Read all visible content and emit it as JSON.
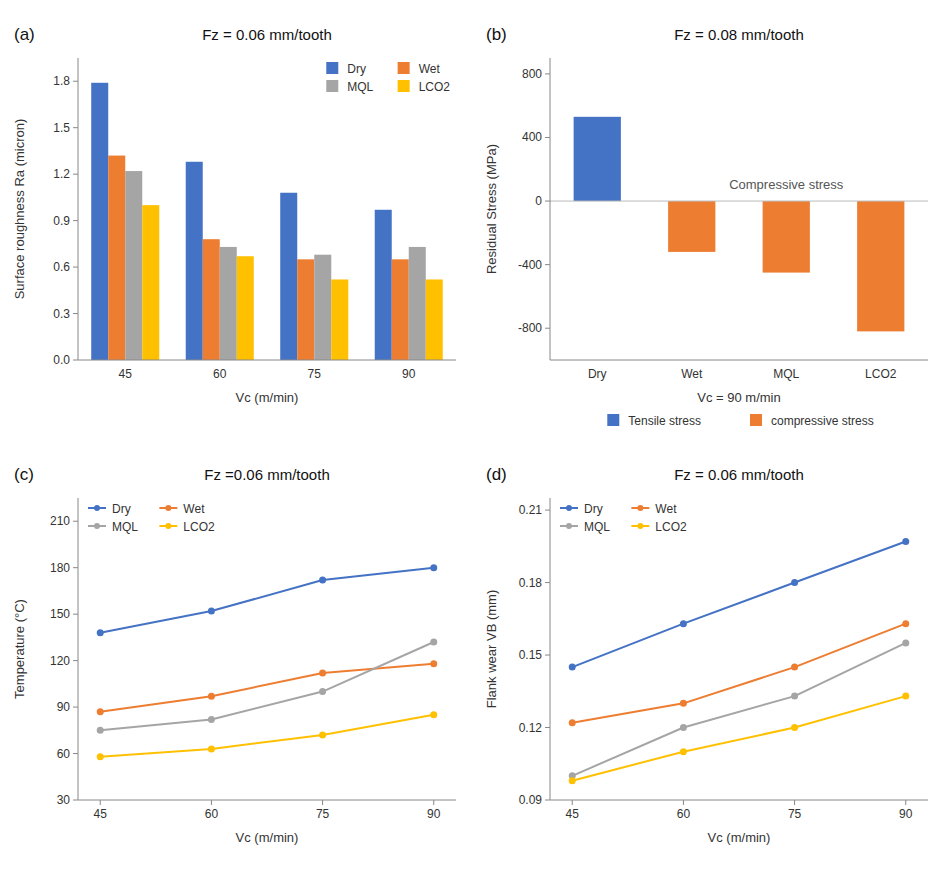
{
  "chart_data": [
    {
      "type": "bar",
      "panel_label": "(a)",
      "title": "Fz = 0.06 mm/tooth",
      "x_label": "Vc (m/min)",
      "y_label": "Surface roughness Ra (micron)",
      "categories": [
        45,
        60,
        75,
        90
      ],
      "series": [
        {
          "name": "Dry",
          "color": "#4472C4",
          "values": [
            1.79,
            1.28,
            1.08,
            0.97
          ]
        },
        {
          "name": "Wet",
          "color": "#ED7D31",
          "values": [
            1.32,
            0.78,
            0.65,
            0.65
          ]
        },
        {
          "name": "MQL",
          "color": "#A5A5A5",
          "values": [
            1.22,
            0.73,
            0.68,
            0.73
          ]
        },
        {
          "name": "LCO2",
          "color": "#FFC000",
          "values": [
            1.0,
            0.67,
            0.52,
            0.52
          ]
        }
      ],
      "ylim": [
        0,
        1.95
      ],
      "yticks": [
        {
          "value": 0,
          "label": "0.0"
        },
        0.3,
        0.6,
        0.9,
        1.2,
        1.5,
        1.8
      ],
      "grid": false,
      "legend": "upper right"
    },
    {
      "type": "bar",
      "panel_label": "(b)",
      "title": "Fz = 0.08 mm/tooth",
      "subtitle": "Vc = 90 m/min",
      "y_label": "Residual Stress (MPa)",
      "annotations": [
        "Compressive stress"
      ],
      "categories": [
        "Dry",
        "Wet",
        "MQL",
        "LCO2"
      ],
      "series": [
        {
          "name": "Tensile stress",
          "color": "#4472C4",
          "values": [
            530,
            null,
            null,
            null
          ]
        },
        {
          "name": "compressive stress",
          "color": "#ED7D31",
          "values": [
            null,
            -320,
            -450,
            -820
          ]
        }
      ],
      "stacked": true,
      "ylim": [
        -1000,
        900
      ],
      "yticks": [
        -800,
        -400,
        0,
        400,
        800
      ],
      "grid": false,
      "legend": "lower center"
    },
    {
      "type": "line",
      "panel_label": "(c)",
      "title": "Fz =0.06 mm/tooth",
      "x_label": "Vc (m/min)",
      "y_label": "Temperature (°C)",
      "x": [
        45,
        60,
        75,
        90
      ],
      "series": [
        {
          "name": "Dry",
          "color": "#4472C4",
          "values": [
            138,
            152,
            172,
            180
          ]
        },
        {
          "name": "Wet",
          "color": "#ED7D31",
          "values": [
            87,
            97,
            112,
            118
          ]
        },
        {
          "name": "MQL",
          "color": "#A5A5A5",
          "values": [
            75,
            82,
            100,
            132
          ]
        },
        {
          "name": "LCO2",
          "color": "#FFC000",
          "values": [
            58,
            63,
            72,
            85
          ]
        }
      ],
      "xlim": [
        42,
        93
      ],
      "xticks": [
        45,
        60,
        75,
        90
      ],
      "ylim": [
        30,
        225
      ],
      "yticks": [
        30,
        60,
        90,
        120,
        150,
        180,
        210
      ],
      "marker": "circle",
      "grid": false,
      "legend": "upper left"
    },
    {
      "type": "line",
      "panel_label": "(d)",
      "title": "Fz = 0.06 mm/tooth",
      "x_label": "Vc (m/min)",
      "y_label": "Flank wear VB (mm)",
      "x": [
        45,
        60,
        75,
        90
      ],
      "series": [
        {
          "name": "Dry",
          "color": "#4472C4",
          "values": [
            0.145,
            0.163,
            0.18,
            0.197
          ]
        },
        {
          "name": "Wet",
          "color": "#ED7D31",
          "values": [
            0.122,
            0.13,
            0.145,
            0.163
          ]
        },
        {
          "name": "MQL",
          "color": "#A5A5A5",
          "values": [
            0.1,
            0.12,
            0.133,
            0.155
          ]
        },
        {
          "name": "LCO2",
          "color": "#FFC000",
          "values": [
            0.098,
            0.11,
            0.12,
            0.133
          ]
        }
      ],
      "xlim": [
        42,
        93
      ],
      "xticks": [
        45,
        60,
        75,
        90
      ],
      "ylim": [
        0.09,
        0.215
      ],
      "yticks": [
        0.09,
        0.12,
        0.15,
        0.18,
        0.21
      ],
      "marker": "circle",
      "grid": false,
      "legend": "upper left"
    }
  ]
}
